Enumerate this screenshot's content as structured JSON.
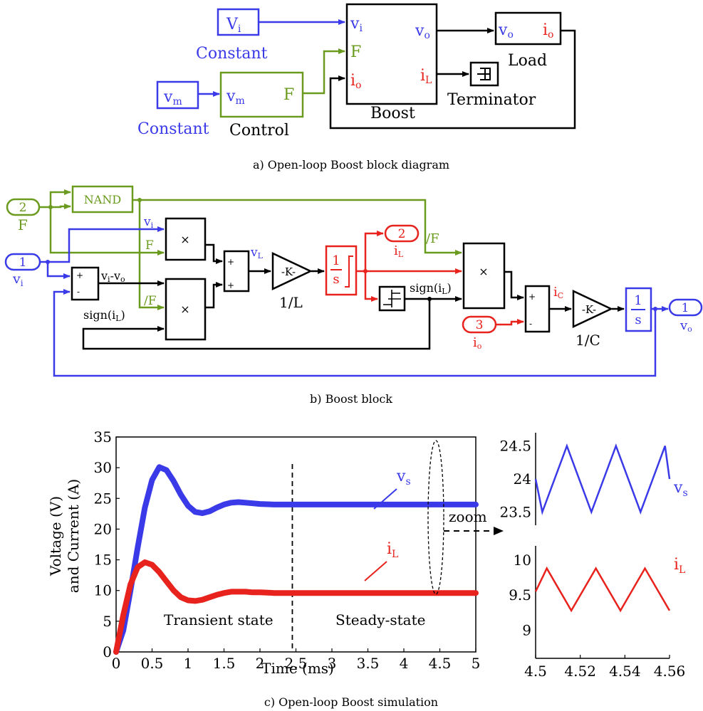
{
  "colors": {
    "blue": "#3a3ae8",
    "green": "#6a9a1e",
    "red": "#e8221c",
    "black": "#000000"
  },
  "panel_a": {
    "caption": "a) Open-loop Boost block diagram",
    "const_vi_block": "V",
    "const_vi_sub": "i",
    "const_vi_label": "Constant",
    "const_vm_block": "v",
    "const_vm_sub": "m",
    "const_vm_label": "Constant",
    "control_in": "v",
    "control_in_sub": "m",
    "control_out": "F",
    "control_label": "Control",
    "boost_vi": "v",
    "boost_vi_sub": "i",
    "boost_f": "F",
    "boost_io": "i",
    "boost_io_sub": "o",
    "boost_vo": "v",
    "boost_vo_sub": "o",
    "boost_il": "i",
    "boost_il_sub": "L",
    "boost_label": "Boost",
    "load_vo": "v",
    "load_vo_sub": "o",
    "load_io": "i",
    "load_io_sub": "o",
    "load_label": "Load",
    "terminator_label": "Terminator"
  },
  "panel_b": {
    "caption": "b) Boost block",
    "port_f_num": "2",
    "port_f_label": "F",
    "port_vi_num": "1",
    "port_vi_label": "v",
    "port_vi_sub": "i",
    "nand": "NAND",
    "sig_vi": "v",
    "sig_vi_sub": "i",
    "sig_f": "F",
    "sig_nf": "/F",
    "sig_vivo_a": "v",
    "sig_vivo_a_sub": "i",
    "sig_vivo_b": "-v",
    "sig_vivo_b_sub": "o",
    "sig_sign_il": "sign(i",
    "sig_sign_il_sub": "L",
    "sig_sign_il_close": ")",
    "sig_vl": "v",
    "sig_vl_sub": "L",
    "gain_k1": "-K-",
    "gain_1l": "1/L",
    "int_num": "1",
    "int_den": "s",
    "port_il_num": "2",
    "port_il_label": "i",
    "port_il_sub": "L",
    "sig_nf2": "/F",
    "sig_sign_il2": "sign(i",
    "sig_sign_il2_sub": "L",
    "sig_sign_il2_close": ")",
    "port_io_num": "3",
    "port_io_label": "i",
    "port_io_sub": "o",
    "sig_ic": "i",
    "sig_ic_sub": "C",
    "gain_k2": "-K-",
    "gain_1c": "1/C",
    "int2_num": "1",
    "int2_den": "s",
    "port_vo_num": "1",
    "port_vo_label": "v",
    "port_vo_sub": "o",
    "mult": "×",
    "plus": "+",
    "minus": "-"
  },
  "panel_c": {
    "caption": "c) Open-loop Boost simulation",
    "ylabel_line1": "Voltage (V)",
    "ylabel_line2": "and Current (A)",
    "xlabel": "Time (ms)",
    "annot_transient": "Transient state",
    "annot_steady": "Steady-state",
    "annot_zoom": "zoom",
    "label_vs": "v",
    "label_vs_sub": "s",
    "label_il": "i",
    "label_il_sub": "L"
  },
  "chart_data": [
    {
      "type": "line",
      "xlabel": "Time (ms)",
      "ylabel": "Voltage (V) and Current (A)",
      "xlim": [
        0,
        5
      ],
      "ylim": [
        0,
        35
      ],
      "xticks": [
        "0",
        "0.5",
        "1",
        "1.5",
        "2",
        "2.5",
        "3",
        "3.5",
        "4",
        "4.5",
        "5"
      ],
      "yticks": [
        "0",
        "5",
        "10",
        "15",
        "20",
        "25",
        "30",
        "35"
      ],
      "series": [
        {
          "name": "vs",
          "color": "#3a3ae8",
          "x": [
            0,
            0.1,
            0.2,
            0.3,
            0.4,
            0.5,
            0.6,
            0.7,
            0.8,
            0.9,
            1.0,
            1.1,
            1.2,
            1.3,
            1.4,
            1.5,
            1.6,
            1.7,
            1.8,
            1.9,
            2.0,
            2.2,
            2.4,
            2.6,
            3.0,
            3.5,
            4.0,
            4.5,
            5.0
          ],
          "y": [
            0,
            3.5,
            10,
            17,
            23.5,
            28,
            30.1,
            29.6,
            27.8,
            25.6,
            23.8,
            22.8,
            22.6,
            22.9,
            23.5,
            24.0,
            24.3,
            24.4,
            24.3,
            24.2,
            24.1,
            24.0,
            24.0,
            24.0,
            24.0,
            24.0,
            24.0,
            24.0,
            24.0
          ]
        },
        {
          "name": "iL",
          "color": "#e8221c",
          "x": [
            0,
            0.1,
            0.2,
            0.3,
            0.4,
            0.5,
            0.6,
            0.7,
            0.8,
            0.9,
            1.0,
            1.1,
            1.2,
            1.3,
            1.4,
            1.5,
            1.6,
            1.7,
            1.8,
            1.9,
            2.0,
            2.2,
            2.4,
            2.6,
            3.0,
            3.5,
            4.0,
            4.5,
            5.0
          ],
          "y": [
            0,
            6,
            11,
            13.8,
            14.6,
            14.2,
            13.0,
            11.5,
            10.0,
            8.9,
            8.4,
            8.3,
            8.5,
            8.9,
            9.3,
            9.6,
            9.8,
            9.8,
            9.8,
            9.7,
            9.7,
            9.6,
            9.6,
            9.6,
            9.6,
            9.6,
            9.6,
            9.6,
            9.6
          ]
        }
      ],
      "annotations": [
        "Transient state",
        "Steady-state",
        "zoom"
      ],
      "divider_x": 2.45,
      "grid": false
    },
    {
      "type": "line",
      "xlim": [
        4.5,
        4.56
      ],
      "ylim": [
        23.3,
        24.7
      ],
      "yticks": [
        "23.5",
        "24",
        "24.5"
      ],
      "series": [
        {
          "name": "vs",
          "color": "#3a3ae8",
          "x": [
            4.5,
            4.503,
            4.514,
            4.525,
            4.536,
            4.547,
            4.558,
            4.56
          ],
          "y": [
            24.0,
            23.5,
            24.5,
            23.5,
            24.5,
            23.5,
            24.5,
            24.0
          ]
        }
      ],
      "grid": false
    },
    {
      "type": "line",
      "xlim": [
        4.5,
        4.56
      ],
      "ylim": [
        8.6,
        10.2
      ],
      "xticks": [
        "4.5",
        "4.52",
        "4.54",
        "4.56"
      ],
      "yticks": [
        "9",
        "9.5",
        "10"
      ],
      "series": [
        {
          "name": "iL",
          "color": "#e8221c",
          "x": [
            4.5,
            4.505,
            4.516,
            4.527,
            4.538,
            4.549,
            4.56
          ],
          "y": [
            9.55,
            9.88,
            9.28,
            9.88,
            9.28,
            9.88,
            9.28
          ]
        }
      ],
      "grid": false
    }
  ]
}
